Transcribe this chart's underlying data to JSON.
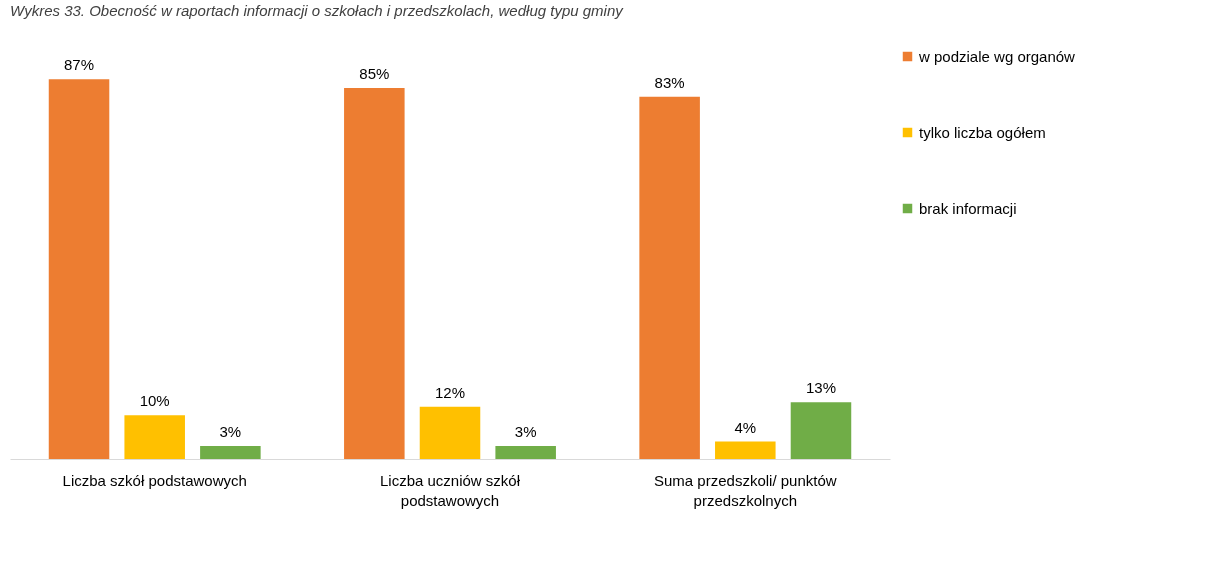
{
  "chart_data": {
    "type": "bar",
    "title": "Wykres 33. Obecność w raportach informacji o szkołach i przedszkolach, według typu gminy",
    "categories": [
      "Liczba szkół podstawowych",
      "Liczba uczniów szkół podstawowych",
      "Suma przedszkoli/ punktów przedszkolnych"
    ],
    "series": [
      {
        "name": "w podziale wg organów",
        "color": "#ed7d31",
        "values": [
          87,
          85,
          83
        ],
        "value_labels": [
          "87%",
          "85%",
          "83%"
        ]
      },
      {
        "name": "tylko liczba ogółem",
        "color": "#ffc000",
        "values": [
          10,
          12,
          4
        ],
        "value_labels": [
          "10%",
          "12%",
          "4%"
        ]
      },
      {
        "name": "brak informacji",
        "color": "#70ad47",
        "values": [
          3,
          3,
          13
        ],
        "value_labels": [
          "3%",
          "3%",
          "13%"
        ]
      }
    ],
    "grid": false,
    "legend": "right"
  }
}
